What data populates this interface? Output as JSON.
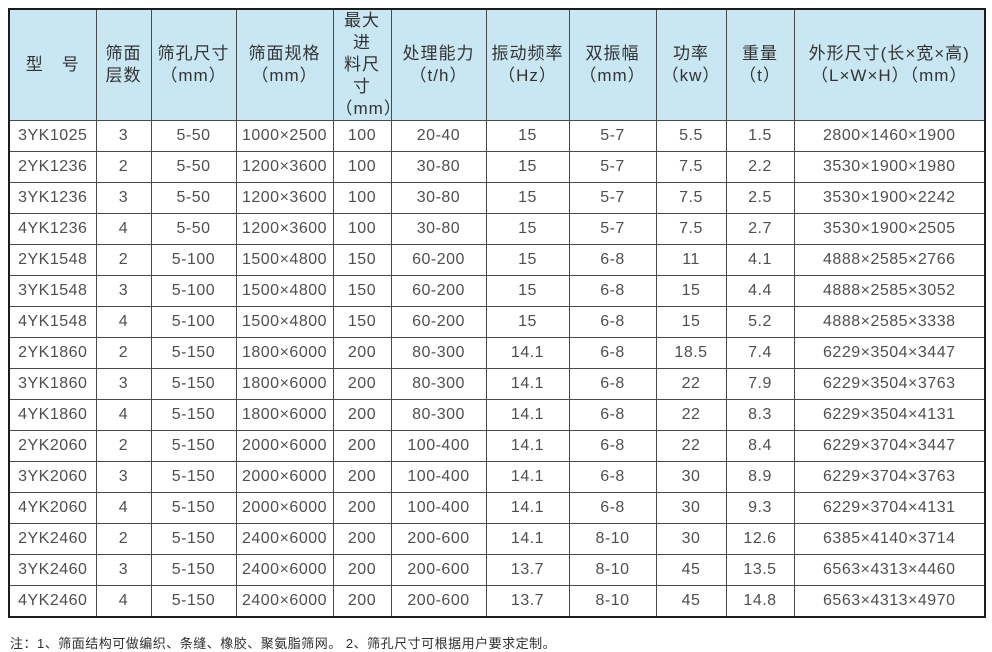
{
  "table": {
    "columns": [
      "型　号",
      "筛面\n层数",
      "筛孔尺寸\n（mm）",
      "筛面规格\n（mm）",
      "最大进\n料尺寸\n（mm）",
      "处理能力\n（t/h）",
      "振动频率\n（Hz）",
      "双振幅\n（mm）",
      "功率\n（kw）",
      "重量\n（t）",
      "外形尺寸(长×宽×高)\n（L×W×H）（mm）"
    ],
    "rows": [
      [
        "3YK1025",
        "3",
        "5-50",
        "1000×2500",
        "100",
        "20-40",
        "15",
        "5-7",
        "5.5",
        "1.5",
        "2800×1460×1900"
      ],
      [
        "2YK1236",
        "2",
        "5-50",
        "1200×3600",
        "100",
        "30-80",
        "15",
        "5-7",
        "7.5",
        "2.2",
        "3530×1900×1980"
      ],
      [
        "3YK1236",
        "3",
        "5-50",
        "1200×3600",
        "100",
        "30-80",
        "15",
        "5-7",
        "7.5",
        "2.5",
        "3530×1900×2242"
      ],
      [
        "4YK1236",
        "4",
        "5-50",
        "1200×3600",
        "100",
        "30-80",
        "15",
        "5-7",
        "7.5",
        "2.7",
        "3530×1900×2505"
      ],
      [
        "2YK1548",
        "2",
        "5-100",
        "1500×4800",
        "150",
        "60-200",
        "15",
        "6-8",
        "11",
        "4.1",
        "4888×2585×2766"
      ],
      [
        "3YK1548",
        "3",
        "5-100",
        "1500×4800",
        "150",
        "60-200",
        "15",
        "6-8",
        "15",
        "4.4",
        "4888×2585×3052"
      ],
      [
        "4YK1548",
        "4",
        "5-100",
        "1500×4800",
        "150",
        "60-200",
        "15",
        "6-8",
        "15",
        "5.2",
        "4888×2585×3338"
      ],
      [
        "2YK1860",
        "2",
        "5-150",
        "1800×6000",
        "200",
        "80-300",
        "14.1",
        "6-8",
        "18.5",
        "7.4",
        "6229×3504×3447"
      ],
      [
        "3YK1860",
        "3",
        "5-150",
        "1800×6000",
        "200",
        "80-300",
        "14.1",
        "6-8",
        "22",
        "7.9",
        "6229×3504×3763"
      ],
      [
        "4YK1860",
        "4",
        "5-150",
        "1800×6000",
        "200",
        "80-300",
        "14.1",
        "6-8",
        "22",
        "8.3",
        "6229×3504×4131"
      ],
      [
        "2YK2060",
        "2",
        "5-150",
        "2000×6000",
        "200",
        "100-400",
        "14.1",
        "6-8",
        "22",
        "8.4",
        "6229×3704×3447"
      ],
      [
        "3YK2060",
        "3",
        "5-150",
        "2000×6000",
        "200",
        "100-400",
        "14.1",
        "6-8",
        "30",
        "8.9",
        "6229×3704×3763"
      ],
      [
        "4YK2060",
        "4",
        "5-150",
        "2000×6000",
        "200",
        "100-400",
        "14.1",
        "6-8",
        "30",
        "9.3",
        "6229×3704×4131"
      ],
      [
        "2YK2460",
        "2",
        "5-150",
        "2400×6000",
        "200",
        "200-600",
        "14.1",
        "8-10",
        "30",
        "12.6",
        "6385×4140×3714"
      ],
      [
        "3YK2460",
        "3",
        "5-150",
        "2400×6000",
        "200",
        "200-600",
        "13.7",
        "8-10",
        "45",
        "13.5",
        "6563×4313×4460"
      ],
      [
        "4YK2460",
        "4",
        "5-150",
        "2400×6000",
        "200",
        "200-600",
        "13.7",
        "8-10",
        "45",
        "14.8",
        "6563×4313×4970"
      ]
    ]
  },
  "note": "注：1、筛面结构可做编织、条缝、橡胶、聚氨脂筛网。 2、筛孔尺寸可根据用户要求定制。",
  "colors": {
    "header_bg": "#c8e7f2",
    "outer_border": "#1c1c1c",
    "inner_border": "#4a4a4a",
    "body_text": "#4f4f4f",
    "header_text": "#333333"
  }
}
